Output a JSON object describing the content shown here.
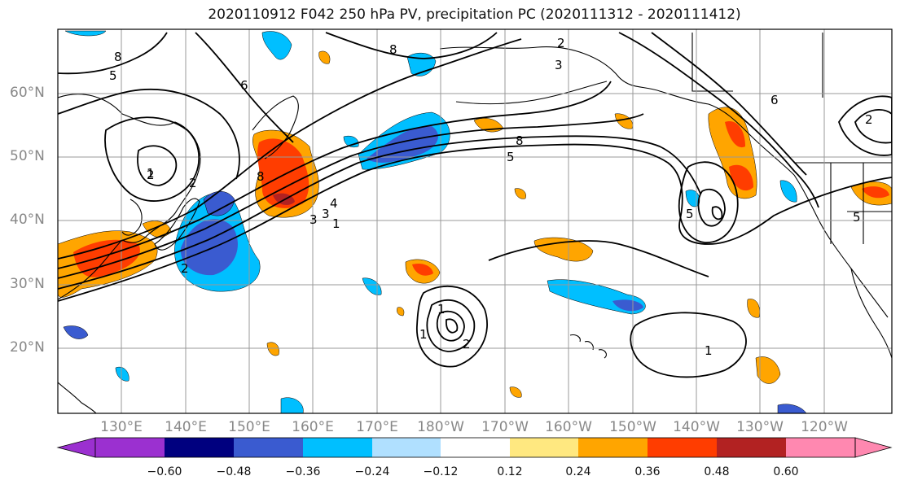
{
  "title": "2020110912 F042 250 hPa PV, precipitation PC (2020111312 - 2020111412)",
  "lat_labels": [
    "60°N",
    "50°N",
    "40°N",
    "30°N",
    "20°N"
  ],
  "lon_labels": [
    "130°E",
    "140°E",
    "150°E",
    "160°E",
    "170°E",
    "180°W",
    "170°W",
    "160°W",
    "150°W",
    "140°W",
    "130°W",
    "120°W"
  ],
  "colorbar": {
    "labels": [
      "−0.60",
      "−0.48",
      "−0.36",
      "−0.24",
      "−0.12",
      "0.12",
      "0.24",
      "0.36",
      "0.48",
      "0.60"
    ],
    "colors": [
      "#9b30d0",
      "#00007f",
      "#3a5bd0",
      "#00bfff",
      "#b0e0ff",
      "#ffffff",
      "#ffe880",
      "#ffa500",
      "#ff3d00",
      "#b22222",
      "#ff88b0"
    ]
  },
  "contour_labels": [
    "5",
    "8",
    "2",
    "6",
    "3",
    "2",
    "1",
    "2",
    "8",
    "4",
    "3",
    "1",
    "5",
    "8",
    "5",
    "1",
    "2",
    "6",
    "8",
    "3",
    "2",
    "5",
    "1",
    "2",
    "1"
  ]
}
